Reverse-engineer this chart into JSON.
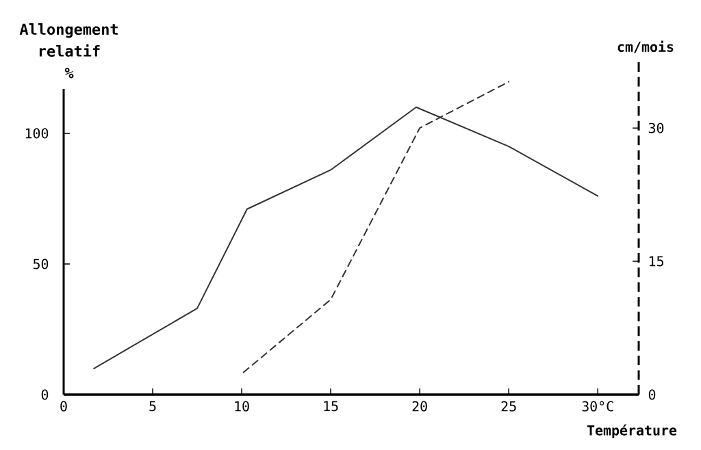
{
  "chart_data": {
    "type": "line",
    "xlabel": "Température",
    "ylabel": "Allongement relatif %",
    "y2label": "cm/mois",
    "xlim": [
      0,
      32.3
    ],
    "xticks": [
      0,
      5,
      10,
      15,
      20,
      25,
      {
        "value": 30,
        "label": "30°C"
      }
    ],
    "ylim": [
      0,
      117
    ],
    "yticks": [
      0,
      50,
      100
    ],
    "y2lim": [
      0,
      37.4
    ],
    "y2ticks": [
      0,
      15,
      30
    ],
    "marker": "none",
    "series": [
      {
        "color": "#333333",
        "line_style": "solid",
        "x": [
          1.7,
          7.5,
          10.3,
          15,
          19.8,
          25,
          30
        ],
        "values": [
          10,
          33,
          71,
          86,
          110,
          95,
          76
        ]
      },
      {
        "color": "#333333",
        "line_style": "dashed",
        "axis": "y2",
        "x": [
          10.1,
          15,
          20,
          25
        ],
        "values": [
          2.5,
          10.7,
          30,
          35.2
        ]
      }
    ]
  }
}
